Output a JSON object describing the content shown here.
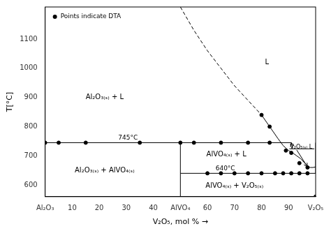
{
  "chart_data": {
    "type": "line",
    "xlabel": "V₂O₅, mol % →",
    "ylabel": "T[°C]",
    "xlim": [
      0,
      100
    ],
    "ylim": [
      560,
      1210
    ],
    "xticks": [
      {
        "value": 0,
        "label": "Al₂O₃"
      },
      10,
      20,
      30,
      40,
      {
        "value": 50,
        "label": "AlVO₄"
      },
      60,
      70,
      80,
      90,
      {
        "value": 100,
        "label": "V₂O₅"
      }
    ],
    "yticks": [
      600,
      700,
      800,
      900,
      1000,
      1100
    ],
    "grid": false,
    "series": [
      {
        "type": "line",
        "color": "#000000",
        "line_style": "solid",
        "x": [
          0,
          91
        ],
        "values": [
          745,
          745
        ]
      },
      {
        "type": "line",
        "color": "#000000",
        "line_style": "solid",
        "x": [
          50,
          100
        ],
        "values": [
          640,
          640
        ]
      },
      {
        "type": "line",
        "color": "#000000",
        "line_style": "solid",
        "x": [
          50,
          50
        ],
        "values": [
          560,
          745
        ]
      },
      {
        "type": "line",
        "color": "#000000",
        "line_style": "dashed",
        "x": [
          50,
          55,
          60,
          65,
          70,
          75,
          80
        ],
        "values": [
          1210,
          1130,
          1060,
          1000,
          940,
          890,
          840
        ]
      },
      {
        "type": "line",
        "color": "#000000",
        "line_style": "solid",
        "x": [
          80,
          83,
          86,
          88,
          90,
          91.5,
          93,
          94.5,
          96,
          97,
          98,
          99,
          100
        ],
        "values": [
          840,
          800,
          760,
          735,
          718,
          710,
          700,
          690,
          675,
          664,
          660,
          660,
          662
        ]
      },
      {
        "type": "line",
        "color": "#000000",
        "line_style": "solid",
        "x": [
          100,
          100
        ],
        "values": [
          640,
          745
        ]
      },
      {
        "type": "scatter",
        "color": "#000000",
        "marker": "o",
        "x": [
          0,
          5,
          15,
          35,
          50,
          55,
          65,
          75,
          83
        ],
        "values": [
          745,
          745,
          745,
          745,
          745,
          745,
          745,
          745,
          745
        ]
      },
      {
        "type": "scatter",
        "color": "#000000",
        "marker": "o",
        "x": [
          60,
          65,
          70,
          75,
          80,
          85,
          88,
          91,
          94,
          97
        ],
        "values": [
          640,
          640,
          640,
          640,
          640,
          640,
          640,
          640,
          640,
          640
        ]
      },
      {
        "type": "scatter",
        "color": "#000000",
        "marker": "o",
        "x": [
          80,
          83,
          89,
          91,
          94,
          97
        ],
        "values": [
          840,
          800,
          718,
          710,
          675,
          660
        ]
      },
      {
        "type": "scatter",
        "color": "#000000",
        "marker": "o",
        "x": [
          100
        ],
        "values": [
          560
        ]
      },
      {
        "type": "line",
        "color": "#000000",
        "line_style": "solid",
        "x": [
          90.3,
          99.5
        ],
        "values": [
          724,
          724
        ]
      },
      {
        "type": "arrow",
        "color": "#000000",
        "line_style": "solid",
        "x": [
          91.5,
          91
        ],
        "values": [
          726,
          745
        ]
      },
      {
        "type": "arrow",
        "color": "#000000",
        "line_style": "solid",
        "x": [
          93,
          97
        ],
        "values": [
          720,
          662
        ]
      }
    ],
    "annotations": [
      {
        "text": "Al₂O₃₍ₛ₎ + L",
        "x": 22,
        "y": 900
      },
      {
        "text": "L",
        "x": 82,
        "y": 1020
      },
      {
        "text": "Al₂O₃₍ₛ₎ + AlVO₄₍ₛ₎",
        "x": 22,
        "y": 650
      },
      {
        "text": "AlVO₄₍ₛ₎ + L",
        "x": 67,
        "y": 705
      },
      {
        "text": "AlVO₄₍ₛ₎ + V₂O₅₍ₛ₎",
        "x": 70,
        "y": 598
      }
    ],
    "line_labels": [
      {
        "text": "745°C",
        "x": 27,
        "y": 750
      },
      {
        "text": "640°C",
        "x": 63,
        "y": 645
      }
    ],
    "callouts": [
      {
        "text": "V₂O₅₍ₛ₎ L",
        "x": 90.5,
        "y": 730
      }
    ],
    "marker_note": {
      "text": "Points indicate DTA",
      "marker": "o"
    }
  }
}
